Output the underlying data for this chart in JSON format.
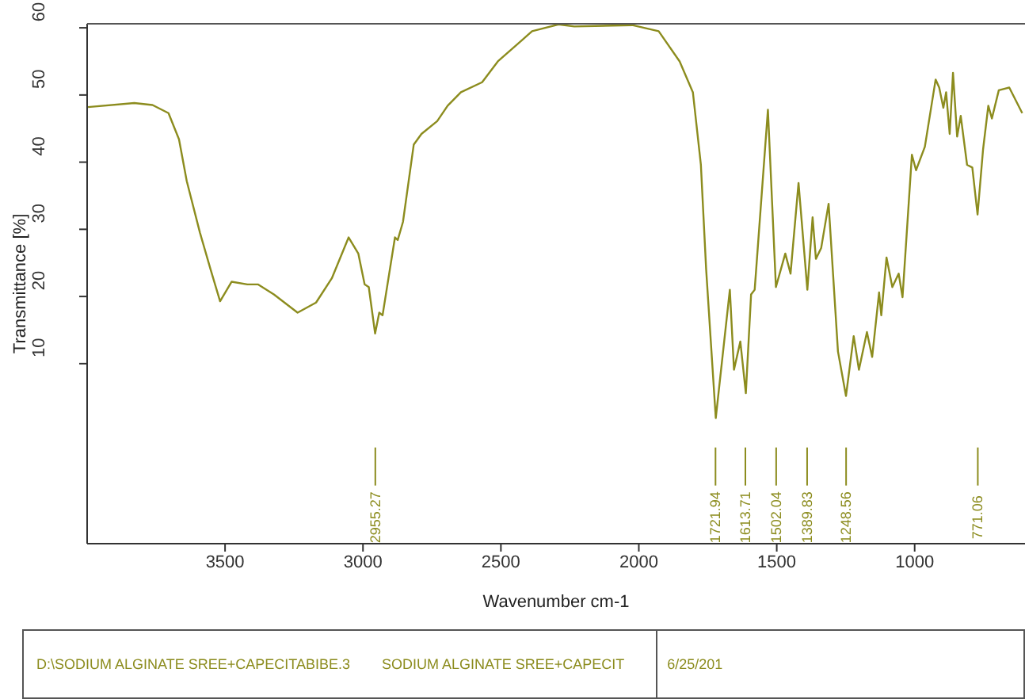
{
  "chart_data": {
    "type": "line",
    "xlabel": "Wavenumber cm-1",
    "ylabel": "Transmittance [%]",
    "x": [
      3997,
      3829,
      3763,
      3705,
      3667,
      3639,
      3591,
      3553,
      3518,
      3476,
      3419,
      3381,
      3323,
      3237,
      3170,
      3113,
      3052,
      3017,
      2994,
      2979,
      2956,
      2941,
      2929,
      2884,
      2874,
      2855,
      2816,
      2788,
      2731,
      2693,
      2645,
      2568,
      2511,
      2425,
      2387,
      2291,
      2234,
      2024,
      1928,
      1852,
      1804,
      1775,
      1756,
      1721,
      1670,
      1655,
      1632,
      1612,
      1593,
      1580,
      1532,
      1503,
      1469,
      1450,
      1421,
      1389,
      1370,
      1358,
      1339,
      1312,
      1278,
      1249,
      1221,
      1202,
      1173,
      1154,
      1129,
      1121,
      1102,
      1081,
      1058,
      1044,
      1010,
      995,
      963,
      924,
      911,
      896,
      886,
      873,
      861,
      846,
      833,
      810,
      791,
      772,
      752,
      733,
      720,
      695,
      657,
      610
    ],
    "values": [
      48.2,
      48.8,
      48.5,
      47.3,
      43.4,
      37.2,
      29.5,
      24.1,
      19.3,
      22.2,
      21.8,
      21.8,
      20.3,
      17.6,
      19.1,
      22.7,
      28.8,
      26.4,
      21.8,
      21.4,
      14.5,
      17.6,
      17.2,
      28.8,
      28.4,
      31.1,
      42.6,
      44.2,
      46.1,
      48.4,
      50.4,
      51.9,
      55,
      58.1,
      59.5,
      60.5,
      60.2,
      60.4,
      59.5,
      55,
      50.4,
      39.6,
      24.1,
      1.9,
      21,
      9.1,
      13.3,
      5.6,
      20.3,
      21,
      47.8,
      21.4,
      26.4,
      23.4,
      36.9,
      21,
      31.8,
      25.6,
      27.2,
      33.8,
      11.8,
      5.2,
      14.1,
      9.1,
      14.7,
      11,
      20.6,
      17.2,
      25.8,
      21.4,
      23.4,
      19.9,
      41.1,
      38.8,
      42.3,
      52.3,
      51.1,
      48.1,
      50.4,
      44.2,
      53.3,
      43.8,
      46.9,
      39.6,
      39.2,
      32.2,
      41.9,
      48.4,
      46.5,
      50.7,
      51.1,
      47.3
    ],
    "color": "#8c8c1e",
    "marker": "none",
    "line_style": "solid",
    "xlim": [
      4000,
      600
    ],
    "ylim": [
      -16.8,
      60.6
    ],
    "xticks": [
      3500,
      3000,
      2500,
      2000,
      1500,
      1000
    ],
    "yticks": [
      10,
      20,
      30,
      40,
      50,
      60
    ],
    "annotations": [
      {
        "text": "2955.27",
        "x": 2955.27
      },
      {
        "text": "1721.94",
        "x": 1721.94
      },
      {
        "text": "1613.71",
        "x": 1613.71
      },
      {
        "text": "1502.04",
        "x": 1502.04
      },
      {
        "text": "1389.83",
        "x": 1389.83
      },
      {
        "text": "1248.56",
        "x": 1248.56
      },
      {
        "text": "771.06",
        "x": 771.06
      },
      "D:\\SODIUM ALGINATE SREE+CAPECITABIBE.3",
      "SODIUM ALGINATE SREE+CAPECIT",
      "6/25/201"
    ]
  }
}
